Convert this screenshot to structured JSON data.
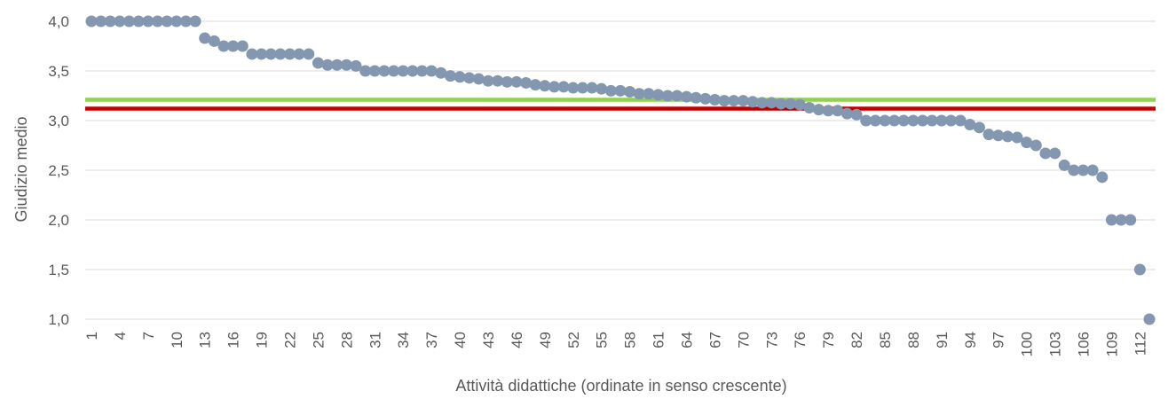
{
  "chart_data": {
    "type": "scatter",
    "xlabel": "Attività didattiche (ordinate in senso crescente)",
    "ylabel": "Giudizio medio",
    "xlim": [
      1,
      113
    ],
    "ylim": [
      1.0,
      4.0
    ],
    "y_ticks": [
      "1,0",
      "1,5",
      "2,0",
      "2,5",
      "3,0",
      "3,5",
      "4,0"
    ],
    "y_tick_values": [
      1.0,
      1.5,
      2.0,
      2.5,
      3.0,
      3.5,
      4.0
    ],
    "x_ticks": [
      1,
      4,
      7,
      10,
      13,
      16,
      19,
      22,
      25,
      28,
      31,
      34,
      37,
      40,
      43,
      46,
      49,
      52,
      55,
      58,
      61,
      64,
      67,
      70,
      73,
      76,
      79,
      82,
      85,
      88,
      91,
      94,
      97,
      100,
      103,
      106,
      109,
      112
    ],
    "grid": true,
    "series": [
      {
        "color": "#8497b0",
        "values": [
          4.0,
          4.0,
          4.0,
          4.0,
          4.0,
          4.0,
          4.0,
          4.0,
          4.0,
          4.0,
          4.0,
          4.0,
          3.83,
          3.8,
          3.75,
          3.75,
          3.75,
          3.67,
          3.67,
          3.67,
          3.67,
          3.67,
          3.67,
          3.67,
          3.58,
          3.56,
          3.56,
          3.56,
          3.55,
          3.5,
          3.5,
          3.5,
          3.5,
          3.5,
          3.5,
          3.5,
          3.5,
          3.48,
          3.45,
          3.44,
          3.43,
          3.42,
          3.4,
          3.4,
          3.39,
          3.39,
          3.38,
          3.36,
          3.35,
          3.34,
          3.34,
          3.33,
          3.33,
          3.33,
          3.32,
          3.3,
          3.3,
          3.29,
          3.27,
          3.27,
          3.26,
          3.25,
          3.25,
          3.24,
          3.23,
          3.22,
          3.21,
          3.2,
          3.2,
          3.2,
          3.19,
          3.18,
          3.18,
          3.17,
          3.17,
          3.16,
          3.13,
          3.11,
          3.1,
          3.1,
          3.07,
          3.06,
          3.0,
          3.0,
          3.0,
          3.0,
          3.0,
          3.0,
          3.0,
          3.0,
          3.0,
          3.0,
          3.0,
          2.96,
          2.93,
          2.86,
          2.85,
          2.84,
          2.83,
          2.78,
          2.75,
          2.67,
          2.67,
          2.55,
          2.5,
          2.5,
          2.5,
          2.43,
          2.0,
          2.0,
          2.0,
          1.5,
          1.0
        ]
      }
    ],
    "reference_lines": [
      {
        "value": 3.21,
        "color": "#92d050"
      },
      {
        "value": 3.12,
        "color": "#c00000"
      }
    ]
  }
}
